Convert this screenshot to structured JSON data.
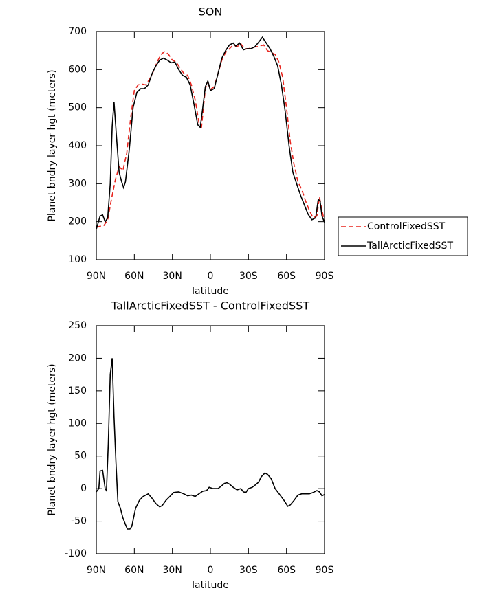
{
  "chart_data": [
    {
      "type": "line",
      "title": "SON",
      "xlabel": "latitude",
      "ylabel": "Planet bndry layer hgt (meters)",
      "xlim": [
        90,
        -90
      ],
      "xticks": [
        {
          "value": 90,
          "label": "90N"
        },
        {
          "value": 60,
          "label": "60N"
        },
        {
          "value": 30,
          "label": "30N"
        },
        0,
        {
          "value": -30,
          "label": "30S"
        },
        {
          "value": -60,
          "label": "60S"
        },
        {
          "value": -90,
          "label": "90S"
        }
      ],
      "ylim": [
        100,
        700
      ],
      "yticks": [
        100,
        200,
        300,
        400,
        500,
        600,
        700
      ],
      "legend": "right",
      "series": [
        {
          "name": "ControlFixedSST",
          "color": "#e8231c",
          "line_style": "dashed",
          "x": [
            90,
            87,
            84,
            81,
            78,
            75,
            72,
            69,
            66,
            63,
            60,
            57,
            54,
            51,
            48,
            45,
            42,
            39,
            36,
            33,
            30,
            27,
            24,
            21,
            18,
            15,
            12,
            9,
            7,
            4,
            2,
            0,
            -3,
            -6,
            -9,
            -12,
            -15,
            -18,
            -21,
            -24,
            -27,
            -30,
            -33,
            -36,
            -39,
            -42,
            -45,
            -48,
            -51,
            -54,
            -57,
            -60,
            -63,
            -66,
            -69,
            -72,
            -75,
            -78,
            -81,
            -84,
            -86,
            -88,
            -90
          ],
          "values": [
            185,
            188,
            190,
            205,
            260,
            310,
            345,
            335,
            380,
            470,
            545,
            560,
            562,
            560,
            575,
            595,
            620,
            640,
            648,
            640,
            625,
            620,
            605,
            590,
            585,
            560,
            520,
            460,
            450,
            550,
            565,
            548,
            555,
            590,
            625,
            645,
            655,
            665,
            660,
            668,
            655,
            655,
            658,
            660,
            662,
            665,
            650,
            645,
            640,
            620,
            580,
            500,
            410,
            350,
            305,
            285,
            255,
            230,
            210,
            215,
            265,
            230,
            200
          ]
        },
        {
          "name": "TallArcticFixedSST",
          "color": "#000000",
          "line_style": "solid",
          "x": [
            90,
            87,
            85,
            83,
            81,
            79,
            77.5,
            76,
            74,
            72,
            70,
            68.5,
            67,
            64,
            61,
            58,
            55,
            52,
            49,
            46,
            43,
            40,
            37,
            34,
            31,
            28,
            25,
            22,
            19,
            16,
            13,
            10,
            8,
            6,
            4,
            2,
            0,
            -3,
            -6,
            -9,
            -12,
            -15,
            -18,
            -20,
            -23,
            -26,
            -29,
            -32,
            -35,
            -38,
            -41,
            -44,
            -47,
            -50,
            -53,
            -56,
            -59,
            -62,
            -65,
            -68,
            -71,
            -74,
            -77,
            -80,
            -83,
            -85,
            -86.5,
            -88,
            -90
          ],
          "values": [
            180,
            215,
            218,
            200,
            210,
            300,
            450,
            515,
            420,
            330,
            305,
            290,
            305,
            390,
            500,
            540,
            550,
            550,
            560,
            590,
            610,
            625,
            630,
            625,
            618,
            620,
            600,
            585,
            580,
            560,
            510,
            455,
            448,
            500,
            555,
            570,
            545,
            550,
            590,
            630,
            650,
            665,
            670,
            662,
            670,
            652,
            655,
            655,
            660,
            672,
            685,
            670,
            655,
            635,
            610,
            560,
            490,
            400,
            330,
            300,
            270,
            245,
            220,
            205,
            210,
            258,
            255,
            215,
            198
          ]
        }
      ]
    },
    {
      "type": "line",
      "title": "TallArcticFixedSST - ControlFixedSST",
      "xlabel": "latitude",
      "ylabel": "Planet bndry layer hgt (meters)",
      "xlim": [
        90,
        -90
      ],
      "xticks": [
        {
          "value": 90,
          "label": "90N"
        },
        {
          "value": 60,
          "label": "60N"
        },
        {
          "value": 30,
          "label": "30N"
        },
        0,
        {
          "value": -30,
          "label": "30S"
        },
        {
          "value": -60,
          "label": "60S"
        },
        {
          "value": -90,
          "label": "90S"
        }
      ],
      "ylim": [
        -100,
        250
      ],
      "yticks": [
        -100,
        -50,
        0,
        50,
        100,
        150,
        200,
        250
      ],
      "color": "#000000",
      "x": [
        90,
        88,
        87,
        85,
        83,
        82,
        80.5,
        79,
        77.5,
        76,
        74.5,
        73,
        71,
        69,
        67,
        65.5,
        63.5,
        62,
        59,
        56,
        53,
        49,
        46,
        43,
        40,
        38,
        35,
        32,
        29,
        25,
        21,
        18,
        15,
        12,
        9,
        6,
        3,
        1,
        -2,
        -6,
        -8,
        -11,
        -13,
        -15,
        -18,
        -21,
        -24,
        -26,
        -28,
        -30,
        -33,
        -35,
        -38,
        -40,
        -43,
        -45,
        -48,
        -51,
        -55,
        -58,
        -61,
        -63,
        -66,
        -69,
        -72,
        -75,
        -78,
        -81,
        -84,
        -86,
        -88,
        -90
      ],
      "values": [
        -5,
        0,
        27,
        28,
        0,
        -3,
        70,
        175,
        200,
        110,
        40,
        -20,
        -30,
        -45,
        -55,
        -62,
        -62,
        -58,
        -30,
        -18,
        -12,
        -8,
        -15,
        -23,
        -28,
        -26,
        -18,
        -12,
        -6,
        -5,
        -8,
        -11,
        -10,
        -12,
        -8,
        -4,
        -3,
        2,
        0,
        0,
        3,
        8,
        9,
        7,
        2,
        -2,
        0,
        -5,
        -6,
        0,
        2,
        5,
        10,
        18,
        24,
        22,
        15,
        0,
        -10,
        -18,
        -27,
        -25,
        -18,
        -10,
        -8,
        -8,
        -8,
        -6,
        -3,
        -5,
        -11,
        -9
      ]
    }
  ]
}
